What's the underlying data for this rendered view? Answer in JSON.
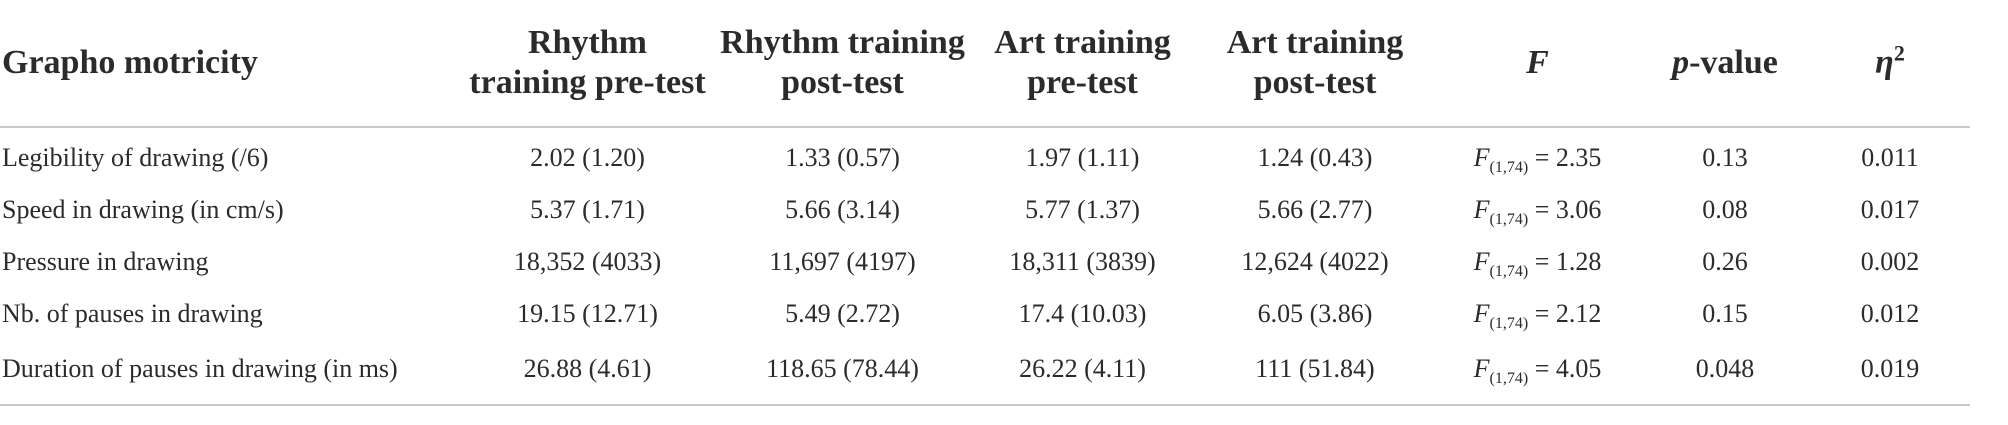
{
  "table": {
    "headers": [
      [
        "Grapho motricity"
      ],
      [
        "Rhythm",
        "training pre-test"
      ],
      [
        "Rhythm training",
        "post-test"
      ],
      [
        "Art training",
        "pre-test"
      ],
      [
        "Art training",
        "post-test"
      ],
      [
        "F"
      ],
      [
        "p",
        "-value"
      ],
      [
        "η",
        "2"
      ]
    ],
    "rows": [
      {
        "label": "Legibility of drawing (/6)",
        "rhythm_pre": "2.02 (1.20)",
        "rhythm_post": "1.33 (0.57)",
        "art_pre": "1.97 (1.11)",
        "art_post": "1.24 (0.43)",
        "f_letter": "F",
        "f_df": "(1,74)",
        "f_value": " = 2.35",
        "p": "0.13",
        "eta": "0.011"
      },
      {
        "label": "Speed in drawing (in cm/s)",
        "rhythm_pre": "5.37 (1.71)",
        "rhythm_post": "5.66 (3.14)",
        "art_pre": "5.77 (1.37)",
        "art_post": "5.66 (2.77)",
        "f_letter": "F",
        "f_df": "(1,74)",
        "f_value": " = 3.06",
        "p": "0.08",
        "eta": "0.017"
      },
      {
        "label": "Pressure in drawing",
        "rhythm_pre": "18,352 (4033)",
        "rhythm_post": "11,697 (4197)",
        "art_pre": "18,311 (3839)",
        "art_post": "12,624 (4022)",
        "f_letter": "F",
        "f_df": "(1,74)",
        "f_value": " = 1.28",
        "p": "0.26",
        "eta": "0.002"
      },
      {
        "label": "Nb. of pauses in drawing",
        "rhythm_pre": "19.15 (12.71)",
        "rhythm_post": "5.49 (2.72)",
        "art_pre": "17.4 (10.03)",
        "art_post": "6.05 (3.86)",
        "f_letter": "F",
        "f_df": "(1,74)",
        "f_value": " = 2.12",
        "p": "0.15",
        "eta": "0.012"
      },
      {
        "label": "Duration of pauses in drawing (in ms)",
        "rhythm_pre": "26.88 (4.61)",
        "rhythm_post": "118.65 (78.44)",
        "art_pre": "26.22 (4.11)",
        "art_post": "111 (51.84)",
        "f_letter": "F",
        "f_df": "(1,74)",
        "f_value": " = 4.05",
        "p": "0.048",
        "eta": "0.019"
      }
    ]
  }
}
